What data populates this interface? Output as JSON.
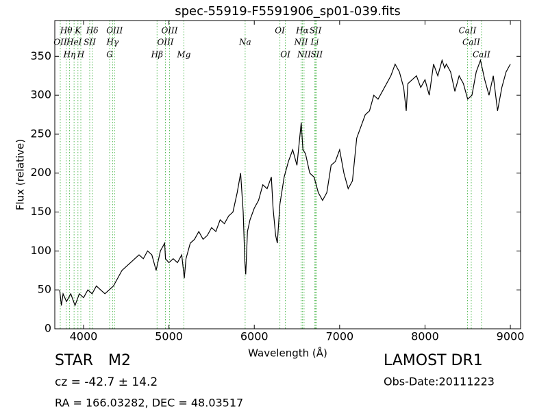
{
  "chart_data": {
    "type": "line",
    "title": "spec-55919-F5591906_sp01-039.fits",
    "x_label": "Wavelength (Å)",
    "y_label": "Flux (relative)",
    "xlim": [
      3663,
      9120
    ],
    "xticks": [
      4000,
      5000,
      6000,
      7000,
      8000,
      9000
    ],
    "ylim": [
      0,
      396
    ],
    "yticks": [
      0,
      50,
      100,
      150,
      200,
      250,
      300,
      350
    ],
    "x": [
      3720,
      3740,
      3760,
      3800,
      3850,
      3900,
      3950,
      4000,
      4050,
      4100,
      4150,
      4200,
      4250,
      4300,
      4350,
      4400,
      4450,
      4500,
      4550,
      4600,
      4650,
      4700,
      4750,
      4800,
      4850,
      4900,
      4950,
      4960,
      5000,
      5050,
      5100,
      5150,
      5180,
      5200,
      5250,
      5300,
      5350,
      5400,
      5450,
      5500,
      5550,
      5600,
      5650,
      5700,
      5750,
      5800,
      5840,
      5870,
      5890,
      5900,
      5920,
      5950,
      6000,
      6050,
      6100,
      6150,
      6200,
      6220,
      6250,
      6270,
      6300,
      6350,
      6400,
      6450,
      6500,
      6550,
      6570,
      6600,
      6650,
      6700,
      6750,
      6800,
      6850,
      6900,
      6950,
      7000,
      7050,
      7100,
      7150,
      7200,
      7250,
      7300,
      7350,
      7400,
      7450,
      7500,
      7550,
      7600,
      7650,
      7700,
      7750,
      7780,
      7800,
      7850,
      7900,
      7950,
      8000,
      8050,
      8100,
      8150,
      8200,
      8230,
      8250,
      8300,
      8350,
      8400,
      8450,
      8500,
      8550,
      8600,
      8650,
      8700,
      8750,
      8800,
      8850,
      8900,
      8950,
      9000
    ],
    "series": [
      {
        "color": "#000000",
        "values": [
          50,
          30,
          45,
          35,
          45,
          30,
          45,
          40,
          50,
          45,
          55,
          50,
          45,
          50,
          55,
          65,
          75,
          80,
          85,
          90,
          95,
          90,
          100,
          95,
          75,
          100,
          110,
          90,
          85,
          90,
          85,
          95,
          65,
          90,
          110,
          115,
          125,
          115,
          120,
          130,
          125,
          140,
          135,
          145,
          150,
          175,
          200,
          150,
          85,
          70,
          125,
          140,
          155,
          165,
          185,
          180,
          195,
          155,
          120,
          110,
          160,
          195,
          215,
          230,
          210,
          265,
          230,
          225,
          200,
          195,
          175,
          165,
          175,
          210,
          215,
          230,
          200,
          180,
          190,
          245,
          260,
          275,
          280,
          300,
          295,
          305,
          315,
          325,
          340,
          330,
          310,
          280,
          315,
          320,
          325,
          310,
          320,
          300,
          340,
          325,
          345,
          335,
          340,
          330,
          305,
          325,
          315,
          295,
          300,
          330,
          345,
          320,
          300,
          325,
          280,
          310,
          330,
          340
        ]
      }
    ],
    "line_color": "#55bb55",
    "spectral_lines": [
      [
        {
          "wavelength": 3797,
          "label": "Hθ"
        },
        {
          "wavelength": 3934,
          "label": "K"
        },
        {
          "wavelength": 4102,
          "label": "Hδ"
        },
        {
          "wavelength": 4363,
          "label": "OIII"
        },
        {
          "wavelength": 5007,
          "label": "OIII"
        },
        {
          "wavelength": 6300,
          "label": "OI"
        },
        {
          "wavelength": 6563,
          "label": "Hα"
        },
        {
          "wavelength": 6717,
          "label": "SII"
        },
        {
          "wavelength": 8498,
          "label": "CaII"
        }
      ],
      [
        {
          "wavelength": 3727,
          "label": "OII"
        },
        {
          "wavelength": 3889,
          "label": "HeI"
        },
        {
          "wavelength": 4072,
          "label": "SII"
        },
        {
          "wavelength": 4340,
          "label": "Hγ"
        },
        {
          "wavelength": 4959,
          "label": "OIII"
        },
        {
          "wavelength": 5893,
          "label": "Na"
        },
        {
          "wavelength": 6548,
          "label": "NII"
        },
        {
          "wavelength": 6708,
          "label": "Li"
        },
        {
          "wavelength": 8542,
          "label": "CaII"
        }
      ],
      [
        {
          "wavelength": 3835,
          "label": "Hη"
        },
        {
          "wavelength": 3968,
          "label": "H"
        },
        {
          "wavelength": 4305,
          "label": "G"
        },
        {
          "wavelength": 4861,
          "label": "Hβ"
        },
        {
          "wavelength": 5175,
          "label": "Mg"
        },
        {
          "wavelength": 6364,
          "label": "OI"
        },
        {
          "wavelength": 6583,
          "label": "NII"
        },
        {
          "wavelength": 6731,
          "label": "SII"
        },
        {
          "wavelength": 8662,
          "label": "CaII"
        }
      ]
    ],
    "annotations": {
      "class": "STAR",
      "subclass": "M2",
      "redshift": "cz = -42.7 ± 14.2",
      "coords": "RA = 166.03282, DEC = 48.03517",
      "survey": "LAMOST DR1",
      "obs_date": "Obs-Date:20111223"
    }
  }
}
